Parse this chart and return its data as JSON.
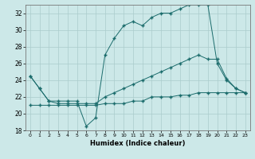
{
  "title": "",
  "xlabel": "Humidex (Indice chaleur)",
  "bg_color": "#cce8e8",
  "grid_color": "#aacccc",
  "line_color": "#1a6b6b",
  "xlim": [
    -0.5,
    23.5
  ],
  "ylim": [
    18,
    33
  ],
  "yticks": [
    18,
    20,
    22,
    24,
    26,
    28,
    30,
    32
  ],
  "xticks": [
    0,
    1,
    2,
    3,
    4,
    5,
    6,
    7,
    8,
    9,
    10,
    11,
    12,
    13,
    14,
    15,
    16,
    17,
    18,
    19,
    20,
    21,
    22,
    23
  ],
  "line1_x": [
    0,
    1,
    2,
    3,
    4,
    5,
    6,
    7,
    8,
    9,
    10,
    11,
    12,
    13,
    14,
    15,
    16,
    17,
    18,
    19,
    20,
    21,
    22,
    23
  ],
  "line1_y": [
    24.5,
    23.0,
    21.5,
    21.2,
    21.2,
    21.2,
    21.2,
    21.2,
    22.0,
    22.5,
    23.0,
    23.5,
    24.0,
    24.5,
    25.0,
    25.5,
    26.0,
    26.5,
    27.0,
    26.5,
    26.5,
    24.2,
    23.0,
    22.5
  ],
  "line2_x": [
    0,
    1,
    2,
    3,
    4,
    5,
    6,
    7,
    8,
    9,
    10,
    11,
    12,
    13,
    14,
    15,
    16,
    17,
    18,
    19,
    20,
    21,
    22,
    23
  ],
  "line2_y": [
    21.0,
    21.0,
    21.0,
    21.0,
    21.0,
    21.0,
    21.0,
    21.0,
    21.2,
    21.2,
    21.2,
    21.5,
    21.5,
    22.0,
    22.0,
    22.0,
    22.2,
    22.2,
    22.5,
    22.5,
    22.5,
    22.5,
    22.5,
    22.5
  ],
  "line3_x": [
    0,
    1,
    2,
    3,
    4,
    5,
    6,
    7,
    8,
    9,
    10,
    11,
    12,
    13,
    14,
    15,
    16,
    17,
    18,
    19,
    20,
    21,
    22,
    23
  ],
  "line3_y": [
    24.5,
    23.0,
    21.5,
    21.5,
    21.5,
    21.5,
    18.5,
    19.5,
    27.0,
    29.0,
    30.5,
    31.0,
    30.5,
    31.5,
    32.0,
    32.0,
    32.5,
    33.0,
    33.0,
    33.0,
    26.0,
    24.0,
    23.0,
    22.5
  ]
}
